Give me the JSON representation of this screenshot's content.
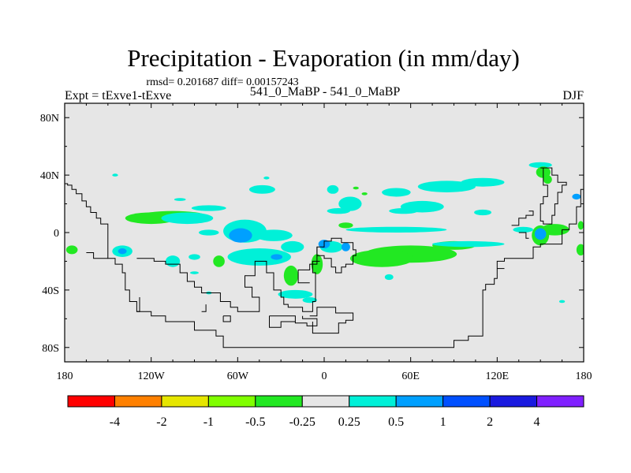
{
  "chart_data": {
    "type": "contour-map",
    "title": "Precipitation - Evaporation (in mm/day)",
    "stats": "rmsd= 0.201687 diff= 0.00157243",
    "subtitle_left": "Expt = tExve1-tExve",
    "subtitle_center": "541_0_MaBP - 541_0_MaBP",
    "subtitle_right": "DJF",
    "xlim": [
      -180,
      180
    ],
    "ylim": [
      -90,
      90
    ],
    "x_ticks": [
      {
        "value": -180,
        "label": "180"
      },
      {
        "value": -120,
        "label": "120W"
      },
      {
        "value": -60,
        "label": "60W"
      },
      {
        "value": 0,
        "label": "0"
      },
      {
        "value": 60,
        "label": "60E"
      },
      {
        "value": 120,
        "label": "120E"
      },
      {
        "value": 180,
        "label": "180"
      }
    ],
    "y_ticks": [
      {
        "value": 80,
        "label": "80N"
      },
      {
        "value": 40,
        "label": "40N"
      },
      {
        "value": 0,
        "label": "0"
      },
      {
        "value": -40,
        "label": "40S"
      },
      {
        "value": -80,
        "label": "80S"
      }
    ],
    "colorbar": {
      "colors": [
        "#ff0000",
        "#ff8000",
        "#e6e600",
        "#80ff00",
        "#22e822",
        "#e6e6e6",
        "#00f0d8",
        "#00a0ff",
        "#0050ff",
        "#1a1adf",
        "#8020ff"
      ],
      "labels": [
        "-4",
        "-2",
        "-1",
        "-0.5",
        "-0.25",
        "0.25",
        "0.5",
        "1",
        "2",
        "4"
      ]
    },
    "background_color": "#e6e6e6",
    "coastline_color": "#000000",
    "blobs": [
      {
        "lon": -105,
        "lat": 12,
        "rlon": 22,
        "rlat": 3,
        "level": 4
      },
      {
        "lon": -120,
        "lat": 10,
        "rlon": 18,
        "rlat": 4,
        "level": 4
      },
      {
        "lon": -95,
        "lat": 10,
        "rlon": 18,
        "rlat": 4,
        "level": 6
      },
      {
        "lon": -80,
        "lat": 17,
        "rlon": 12,
        "rlat": 2,
        "level": 6
      },
      {
        "lon": -43,
        "lat": 30,
        "rlon": 9,
        "rlat": 3,
        "level": 6
      },
      {
        "lon": -55,
        "lat": 1,
        "rlon": 15,
        "rlat": 8,
        "level": 6
      },
      {
        "lon": -80,
        "lat": 0,
        "rlon": 7,
        "rlat": 2,
        "level": 6
      },
      {
        "lon": -58,
        "lat": -2,
        "rlon": 8,
        "rlat": 5,
        "level": 7
      },
      {
        "lon": -35,
        "lat": -2,
        "rlon": 13,
        "rlat": 4,
        "level": 6
      },
      {
        "lon": -22,
        "lat": -10,
        "rlon": 8,
        "rlat": 4,
        "level": 6
      },
      {
        "lon": -45,
        "lat": -17,
        "rlon": 22,
        "rlat": 6,
        "level": 6
      },
      {
        "lon": -33,
        "lat": -17,
        "rlon": 4,
        "rlat": 2,
        "level": 7
      },
      {
        "lon": -23,
        "lat": -30,
        "rlon": 5,
        "rlat": 7,
        "level": 4
      },
      {
        "lon": -73,
        "lat": -20,
        "rlon": 4,
        "rlat": 4,
        "level": 4
      },
      {
        "lon": -140,
        "lat": -13,
        "rlon": 7,
        "rlat": 4,
        "level": 6
      },
      {
        "lon": -140,
        "lat": -13,
        "rlon": 3,
        "rlat": 2,
        "level": 7
      },
      {
        "lon": -175,
        "lat": -12,
        "rlon": 4,
        "rlat": 3,
        "level": 4
      },
      {
        "lon": -105,
        "lat": -20,
        "rlon": 5,
        "rlat": 4,
        "level": 6
      },
      {
        "lon": -90,
        "lat": -17,
        "rlon": 4,
        "rlat": 2,
        "level": 6
      },
      {
        "lon": 6,
        "lat": 30,
        "rlon": 4,
        "rlat": 3,
        "level": 6
      },
      {
        "lon": 22,
        "lat": 31,
        "rlon": 2,
        "rlat": 1,
        "level": 4
      },
      {
        "lon": 28,
        "lat": 27,
        "rlon": 2,
        "rlat": 1,
        "level": 4
      },
      {
        "lon": 18,
        "lat": 20,
        "rlon": 8,
        "rlat": 5,
        "level": 6
      },
      {
        "lon": 10,
        "lat": 15,
        "rlon": 8,
        "rlat": 2,
        "level": 6
      },
      {
        "lon": 50,
        "lat": 28,
        "rlon": 10,
        "rlat": 3,
        "level": 6
      },
      {
        "lon": 68,
        "lat": 18,
        "rlon": 15,
        "rlat": 4,
        "level": 6
      },
      {
        "lon": 55,
        "lat": 15,
        "rlon": 10,
        "rlat": 2,
        "level": 6
      },
      {
        "lon": 85,
        "lat": 32,
        "rlon": 20,
        "rlat": 4,
        "level": 6
      },
      {
        "lon": 110,
        "lat": 35,
        "rlon": 15,
        "rlat": 3,
        "level": 6
      },
      {
        "lon": 50,
        "lat": 2,
        "rlon": 35,
        "rlat": 2,
        "level": 6
      },
      {
        "lon": 15,
        "lat": 5,
        "rlon": 5,
        "rlat": 2,
        "level": 4
      },
      {
        "lon": 60,
        "lat": -15,
        "rlon": 32,
        "rlat": 6,
        "level": 4
      },
      {
        "lon": 40,
        "lat": -18,
        "rlon": 22,
        "rlat": 6,
        "level": 4
      },
      {
        "lon": 90,
        "lat": -9,
        "rlon": 15,
        "rlat": 3,
        "level": 4
      },
      {
        "lon": 100,
        "lat": -8,
        "rlon": 25,
        "rlat": 2,
        "level": 6
      },
      {
        "lon": 5,
        "lat": -10,
        "rlon": 8,
        "rlat": 4,
        "level": 6
      },
      {
        "lon": 0,
        "lat": -8,
        "rlon": 4,
        "rlat": 3,
        "level": 7
      },
      {
        "lon": 15,
        "lat": -10,
        "rlon": 3,
        "rlat": 3,
        "level": 7
      },
      {
        "lon": -5,
        "lat": -22,
        "rlon": 4,
        "rlat": 7,
        "level": 4
      },
      {
        "lon": -20,
        "lat": -43,
        "rlon": 12,
        "rlat": 3,
        "level": 6
      },
      {
        "lon": -10,
        "lat": -47,
        "rlon": 5,
        "rlat": 2,
        "level": 6
      },
      {
        "lon": 150,
        "lat": 47,
        "rlon": 8,
        "rlat": 2,
        "level": 6
      },
      {
        "lon": 152,
        "lat": 42,
        "rlon": 5,
        "rlat": 4,
        "level": 4
      },
      {
        "lon": 155,
        "lat": 37,
        "rlon": 3,
        "rlat": 3,
        "level": 4
      },
      {
        "lon": 175,
        "lat": 25,
        "rlon": 3,
        "rlat": 2,
        "level": 7
      },
      {
        "lon": 160,
        "lat": 2,
        "rlon": 10,
        "rlat": 4,
        "level": 4
      },
      {
        "lon": 150,
        "lat": -2,
        "rlon": 6,
        "rlat": 7,
        "level": 4
      },
      {
        "lon": 150,
        "lat": -1,
        "rlon": 4,
        "rlat": 4,
        "level": 7
      },
      {
        "lon": 138,
        "lat": 2,
        "rlon": 7,
        "rlat": 2,
        "level": 6
      },
      {
        "lon": 178,
        "lat": -12,
        "rlon": 3,
        "rlat": 4,
        "level": 4
      },
      {
        "lon": 178,
        "lat": 5,
        "rlon": 2,
        "rlat": 3,
        "level": 4
      },
      {
        "lon": -40,
        "lat": 38,
        "rlon": 2,
        "rlat": 1,
        "level": 6
      },
      {
        "lon": -100,
        "lat": 23,
        "rlon": 4,
        "rlat": 1,
        "level": 6
      },
      {
        "lon": -145,
        "lat": 40,
        "rlon": 2,
        "rlat": 1,
        "level": 6
      },
      {
        "lon": 165,
        "lat": -48,
        "rlon": 2,
        "rlat": 1,
        "level": 6
      },
      {
        "lon": 45,
        "lat": -31,
        "rlon": 3,
        "rlat": 2,
        "level": 6
      },
      {
        "lon": -90,
        "lat": -28,
        "rlon": 3,
        "rlat": 1,
        "level": 6
      },
      {
        "lon": 110,
        "lat": 14,
        "rlon": 6,
        "rlat": 2,
        "level": 6
      },
      {
        "lon": -80,
        "lat": -42,
        "rlon": 2,
        "rlat": 1,
        "level": 6
      }
    ],
    "coastlines": [
      [
        [
          -180,
          34
        ],
        [
          -178,
          34
        ],
        [
          -178,
          33
        ],
        [
          -175,
          33
        ],
        [
          -175,
          30
        ],
        [
          -172,
          30
        ],
        [
          -172,
          27
        ],
        [
          -168,
          27
        ],
        [
          -168,
          22
        ],
        [
          -165,
          22
        ],
        [
          -165,
          18
        ],
        [
          -162,
          18
        ],
        [
          -162,
          14
        ],
        [
          -158,
          14
        ],
        [
          -158,
          10
        ],
        [
          -155,
          10
        ],
        [
          -155,
          6
        ],
        [
          -150,
          6
        ],
        [
          -150,
          -18
        ],
        [
          -145,
          -18
        ],
        [
          -145,
          -22
        ],
        [
          -140,
          -22
        ],
        [
          -140,
          -28
        ],
        [
          -138,
          -28
        ],
        [
          -138,
          -40
        ],
        [
          -135,
          -40
        ],
        [
          -135,
          -48
        ],
        [
          -130,
          -48
        ],
        [
          -130,
          -55
        ],
        [
          -120,
          -55
        ],
        [
          -120,
          -58
        ],
        [
          -110,
          -58
        ],
        [
          -110,
          -62
        ],
        [
          -90,
          -62
        ],
        [
          -90,
          -68
        ],
        [
          -75,
          -68
        ],
        [
          -75,
          -72
        ],
        [
          -70,
          -72
        ],
        [
          -70,
          -80
        ],
        [
          90,
          -80
        ],
        [
          90,
          -75
        ],
        [
          100,
          -75
        ],
        [
          100,
          -72
        ],
        [
          110,
          -72
        ],
        [
          110,
          -40
        ],
        [
          112,
          -40
        ],
        [
          112,
          -36
        ],
        [
          118,
          -36
        ],
        [
          118,
          -32
        ],
        [
          120,
          -32
        ],
        [
          120,
          -20
        ],
        [
          125,
          -20
        ],
        [
          125,
          -18
        ],
        [
          145,
          -18
        ],
        [
          145,
          -10
        ],
        [
          150,
          -10
        ],
        [
          150,
          -8
        ],
        [
          165,
          -8
        ],
        [
          165,
          2
        ],
        [
          170,
          2
        ],
        [
          170,
          6
        ],
        [
          175,
          6
        ],
        [
          175,
          18
        ],
        [
          178,
          18
        ],
        [
          178,
          30
        ],
        [
          180,
          30
        ]
      ],
      [
        [
          -165,
          -14
        ],
        [
          -160,
          -14
        ],
        [
          -160,
          -18
        ],
        [
          -150,
          -18
        ]
      ],
      [
        [
          -130,
          -18
        ],
        [
          -118,
          -18
        ],
        [
          -118,
          -20
        ],
        [
          -110,
          -20
        ],
        [
          -110,
          -22
        ],
        [
          -100,
          -22
        ],
        [
          -100,
          -28
        ],
        [
          -95,
          -28
        ],
        [
          -95,
          -34
        ],
        [
          -90,
          -34
        ],
        [
          -90,
          -38
        ],
        [
          -85,
          -38
        ],
        [
          -85,
          -42
        ],
        [
          -72,
          -42
        ],
        [
          -72,
          -48
        ],
        [
          -65,
          -48
        ],
        [
          -65,
          -52
        ],
        [
          -60,
          -52
        ],
        [
          -60,
          -55
        ],
        [
          -45,
          -55
        ],
        [
          -45,
          -45
        ],
        [
          -50,
          -45
        ],
        [
          -50,
          -38
        ],
        [
          -55,
          -38
        ],
        [
          -55,
          -30
        ],
        [
          -48,
          -30
        ],
        [
          -48,
          -20
        ],
        [
          -40,
          -20
        ],
        [
          -40,
          -28
        ],
        [
          -35,
          -28
        ],
        [
          -35,
          -40
        ],
        [
          -30,
          -40
        ],
        [
          -30,
          -45
        ],
        [
          -28,
          -45
        ],
        [
          -28,
          -50
        ],
        [
          -25,
          -50
        ],
        [
          -25,
          -52
        ],
        [
          -15,
          -52
        ],
        [
          -15,
          -55
        ],
        [
          -8,
          -55
        ],
        [
          -8,
          -48
        ],
        [
          -6,
          -48
        ],
        [
          -6,
          -28
        ],
        [
          -8,
          -28
        ],
        [
          -8,
          -20
        ],
        [
          -3,
          -20
        ]
      ],
      [
        [
          -3,
          -10
        ],
        [
          0,
          -10
        ],
        [
          0,
          -6
        ],
        [
          5,
          -6
        ],
        [
          5,
          -4
        ],
        [
          12,
          -4
        ],
        [
          12,
          -7
        ],
        [
          20,
          -7
        ],
        [
          20,
          -12
        ],
        [
          22,
          -12
        ],
        [
          22,
          -16
        ],
        [
          20,
          -16
        ],
        [
          20,
          -22
        ],
        [
          15,
          -22
        ],
        [
          15,
          -24
        ],
        [
          12,
          -24
        ],
        [
          12,
          -28
        ],
        [
          8,
          -28
        ],
        [
          8,
          -24
        ],
        [
          5,
          -24
        ],
        [
          5,
          -18
        ],
        [
          0,
          -18
        ],
        [
          0,
          -16
        ],
        [
          -5,
          -16
        ],
        [
          -5,
          -10
        ],
        [
          -3,
          -10
        ]
      ],
      [
        [
          -5,
          -10
        ],
        [
          -5,
          -22
        ],
        [
          -10,
          -22
        ],
        [
          -10,
          -26
        ],
        [
          -18,
          -26
        ],
        [
          -18,
          -35
        ],
        [
          -10,
          -35
        ]
      ],
      [
        [
          -38,
          -58
        ],
        [
          -20,
          -58
        ],
        [
          -20,
          -63
        ],
        [
          -12,
          -63
        ],
        [
          -12,
          -65
        ],
        [
          -5,
          -65
        ],
        [
          -5,
          -60
        ],
        [
          -15,
          -60
        ],
        [
          -15,
          -58
        ]
      ],
      [
        [
          -10,
          -58
        ],
        [
          -5,
          -58
        ],
        [
          -5,
          -52
        ],
        [
          8,
          -52
        ],
        [
          8,
          -56
        ],
        [
          20,
          -56
        ],
        [
          20,
          -61
        ],
        [
          15,
          -61
        ],
        [
          15,
          -63
        ],
        [
          10,
          -63
        ],
        [
          10,
          -70
        ],
        [
          -8,
          -70
        ],
        [
          -8,
          -62
        ]
      ],
      [
        [
          -38,
          -58
        ],
        [
          -38,
          -66
        ],
        [
          -30,
          -66
        ],
        [
          -30,
          -62
        ],
        [
          -20,
          -62
        ]
      ],
      [
        [
          -70,
          -58
        ],
        [
          -70,
          -62
        ],
        [
          -65,
          -62
        ],
        [
          -65,
          -58
        ],
        [
          -70,
          -58
        ]
      ],
      [
        [
          -85,
          -55
        ],
        [
          -82,
          -55
        ],
        [
          -82,
          -50
        ]
      ],
      [
        [
          -130,
          -55
        ],
        [
          -128,
          -55
        ],
        [
          -128,
          -45
        ]
      ],
      [
        [
          150,
          45
        ],
        [
          152,
          45
        ],
        [
          152,
          33
        ],
        [
          155,
          33
        ],
        [
          155,
          25
        ],
        [
          152,
          25
        ],
        [
          152,
          20
        ],
        [
          150,
          20
        ],
        [
          150,
          8
        ],
        [
          152,
          8
        ],
        [
          152,
          6
        ],
        [
          158,
          6
        ],
        [
          158,
          12
        ],
        [
          160,
          12
        ],
        [
          160,
          20
        ],
        [
          162,
          20
        ],
        [
          162,
          28
        ],
        [
          165,
          28
        ],
        [
          165,
          33
        ],
        [
          168,
          33
        ],
        [
          168,
          35
        ],
        [
          162,
          35
        ],
        [
          162,
          40
        ],
        [
          158,
          40
        ],
        [
          158,
          45
        ],
        [
          150,
          45
        ]
      ],
      [
        [
          130,
          5
        ],
        [
          135,
          5
        ],
        [
          135,
          10
        ],
        [
          140,
          10
        ],
        [
          140,
          12
        ],
        [
          145,
          12
        ],
        [
          145,
          15
        ],
        [
          142,
          15
        ]
      ],
      [
        [
          135,
          0
        ],
        [
          140,
          0
        ],
        [
          140,
          -4
        ],
        [
          142,
          -4
        ]
      ],
      [
        [
          120,
          -25
        ],
        [
          125,
          -25
        ]
      ]
    ]
  }
}
